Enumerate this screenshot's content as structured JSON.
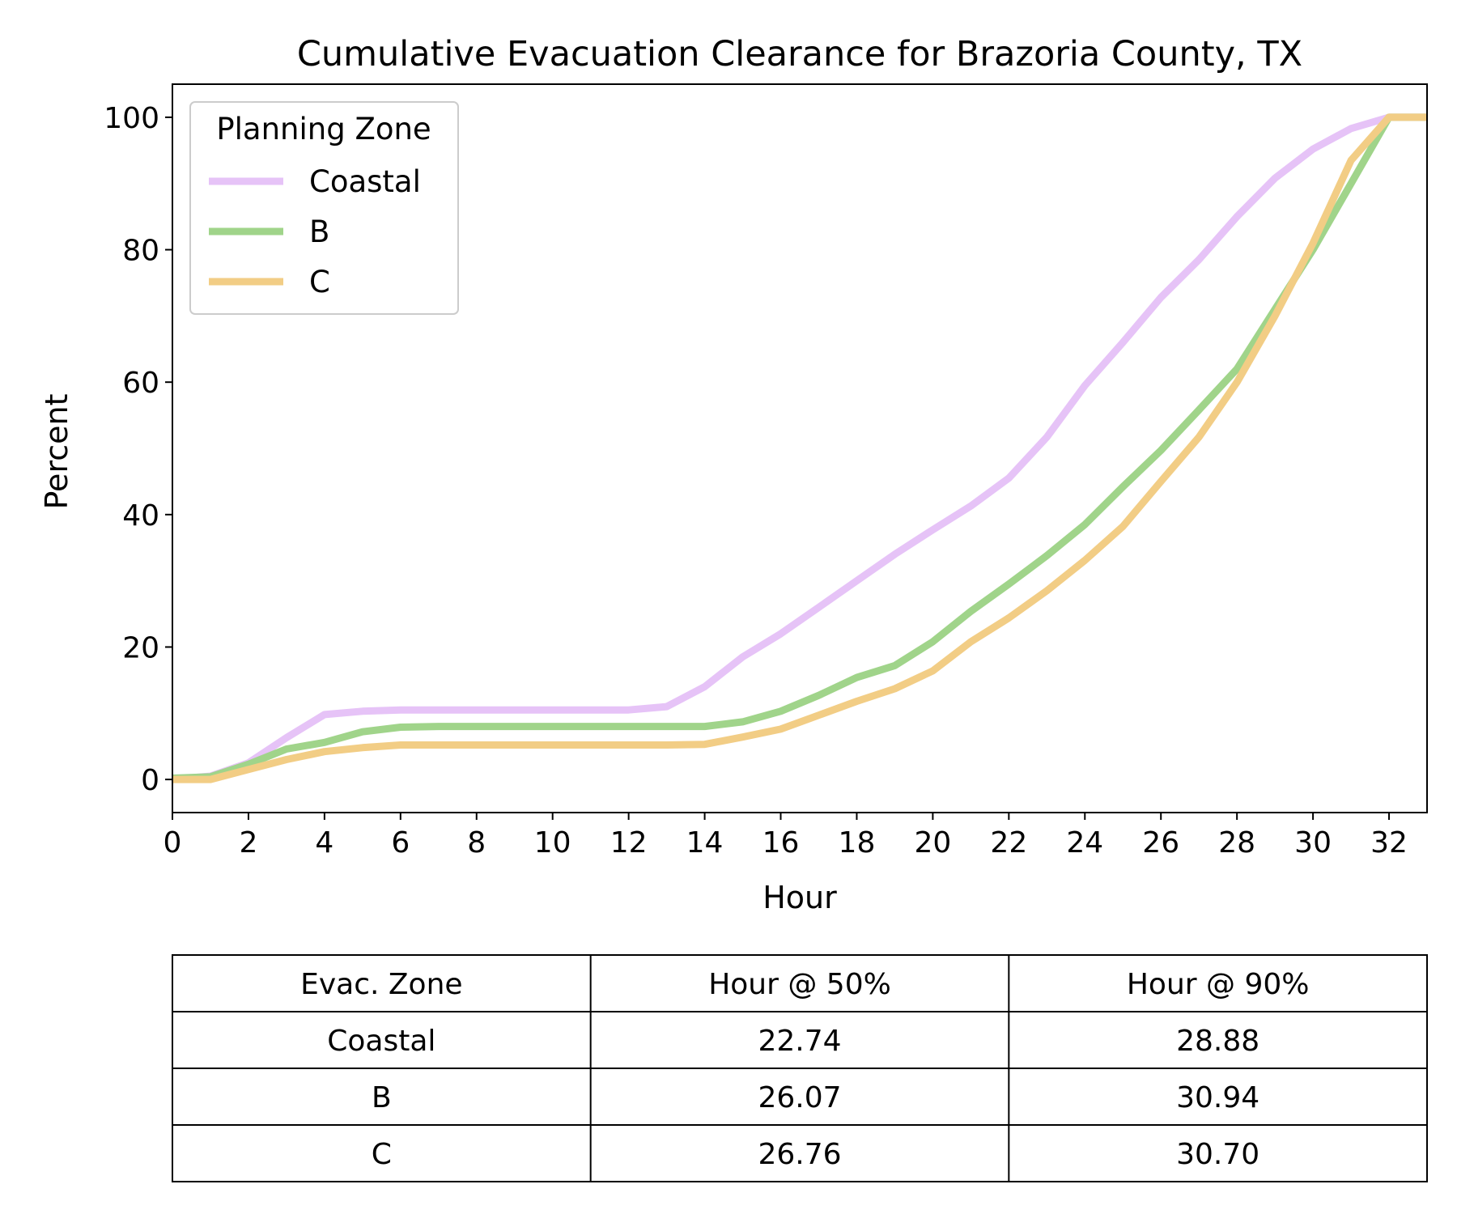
{
  "chart_data": {
    "type": "line",
    "title": "Cumulative Evacuation Clearance for Brazoria County, TX",
    "xlabel": "Hour",
    "ylabel": "Percent",
    "xlim": [
      0,
      33
    ],
    "ylim": [
      -5,
      105
    ],
    "xticks": [
      0,
      2,
      4,
      6,
      8,
      10,
      12,
      14,
      16,
      18,
      20,
      22,
      24,
      26,
      28,
      30,
      32
    ],
    "yticks": [
      0,
      20,
      40,
      60,
      80,
      100
    ],
    "legend": {
      "title": "Planning Zone",
      "position": "upper-left"
    },
    "x": [
      0,
      1,
      2,
      3,
      4,
      5,
      6,
      7,
      8,
      9,
      10,
      11,
      12,
      13,
      14,
      15,
      16,
      17,
      18,
      19,
      20,
      21,
      22,
      23,
      24,
      25,
      26,
      27,
      28,
      29,
      30,
      31,
      32,
      33
    ],
    "series": [
      {
        "name": "Coastal",
        "color": "#e6c3f7",
        "values": [
          0,
          0.5,
          2.5,
          6.3,
          9.8,
          10.3,
          10.5,
          10.5,
          10.5,
          10.5,
          10.5,
          10.5,
          10.5,
          11.0,
          14.0,
          18.5,
          22.0,
          26.0,
          30.0,
          34.0,
          37.7,
          41.3,
          45.5,
          51.7,
          59.5,
          66.0,
          72.8,
          78.5,
          85.0,
          90.8,
          95.2,
          98.3,
          100.0,
          100.0
        ]
      },
      {
        "name": "B",
        "color": "#a0d48a",
        "values": [
          0.2,
          0.4,
          2.3,
          4.6,
          5.6,
          7.2,
          7.9,
          8.0,
          8.0,
          8.0,
          8.0,
          8.0,
          8.0,
          8.0,
          8.0,
          8.7,
          10.3,
          12.7,
          15.4,
          17.2,
          20.8,
          25.4,
          29.5,
          33.8,
          38.5,
          44.2,
          49.7,
          55.8,
          62.0,
          71.0,
          80.0,
          90.0,
          100.0,
          100.0
        ]
      },
      {
        "name": "C",
        "color": "#f2cd85",
        "values": [
          0,
          0,
          1.5,
          3.0,
          4.2,
          4.8,
          5.2,
          5.2,
          5.2,
          5.2,
          5.2,
          5.2,
          5.2,
          5.2,
          5.3,
          6.4,
          7.6,
          9.7,
          11.8,
          13.7,
          16.4,
          20.8,
          24.4,
          28.5,
          33.1,
          38.2,
          45.0,
          51.7,
          60.0,
          70.0,
          81.0,
          93.5,
          100.0,
          100.0
        ]
      }
    ],
    "table": {
      "headers": [
        "Evac. Zone",
        "Hour @ 50%",
        "Hour @ 90%"
      ],
      "rows": [
        [
          "Coastal",
          "22.74",
          "28.88"
        ],
        [
          "B",
          "26.07",
          "30.94"
        ],
        [
          "C",
          "26.76",
          "30.70"
        ]
      ]
    }
  }
}
